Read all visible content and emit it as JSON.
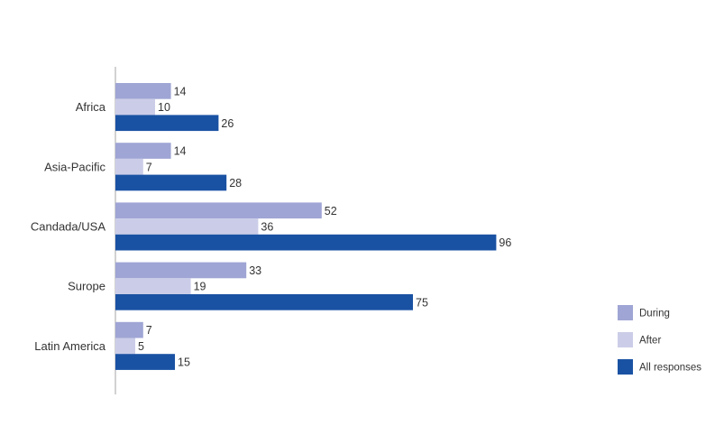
{
  "chart_data": {
    "type": "bar",
    "orientation": "horizontal",
    "categories": [
      "Africa",
      "Asia-Pacific",
      "Candada/USA",
      "Surope",
      "Latin America"
    ],
    "series": [
      {
        "name": "During",
        "values": [
          14,
          14,
          52,
          33,
          7
        ],
        "color": "#9fa5d4"
      },
      {
        "name": "After",
        "values": [
          10,
          7,
          36,
          19,
          5
        ],
        "color": "#cbcde8"
      },
      {
        "name": "All responses",
        "values": [
          26,
          28,
          96,
          75,
          15
        ],
        "color": "#1a52a3"
      }
    ],
    "xlim": [
      0,
      100
    ],
    "grid": false,
    "data_labels": true,
    "legend_position": "right"
  }
}
